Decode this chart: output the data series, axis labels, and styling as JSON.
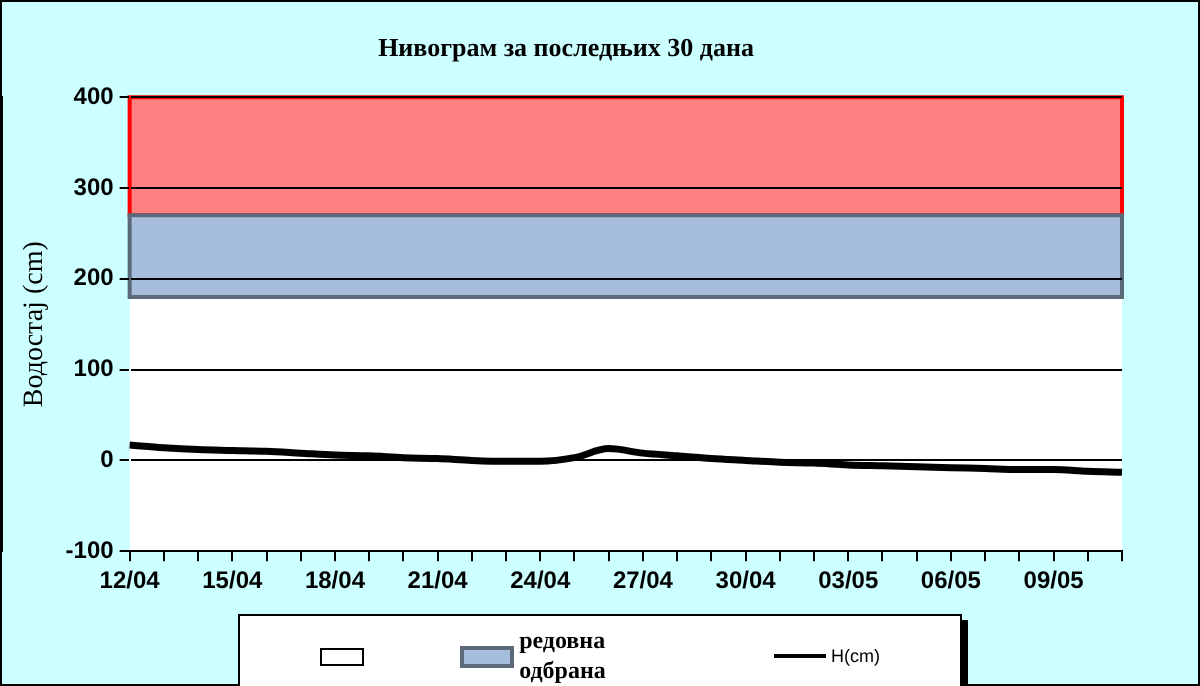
{
  "chart_data": {
    "type": "line",
    "title": "Нивограм за последњих 30 дана",
    "ylabel": "Водостај (cm)",
    "categories": [
      "12/04",
      null,
      null,
      "15/04",
      null,
      null,
      "18/04",
      null,
      null,
      "21/04",
      null,
      null,
      "24/04",
      null,
      null,
      "27/04",
      null,
      null,
      "30/04",
      null,
      null,
      "03/05",
      null,
      null,
      "06/05",
      null,
      null,
      "09/05",
      null,
      null
    ],
    "series": [
      {
        "name": "H(cm)",
        "color": "#000000",
        "values": [
          17,
          14,
          12,
          11,
          10,
          8,
          6,
          5,
          3,
          2,
          0,
          -1,
          -1,
          3,
          13,
          8,
          5,
          2,
          0,
          -2,
          -3,
          -5,
          -6,
          -7,
          -8,
          -9,
          -10,
          -10,
          -12,
          -13
        ]
      }
    ],
    "bands": [
      {
        "axis": "y",
        "from": 270,
        "to": 400,
        "color": "#ff8080"
      },
      {
        "axis": "y",
        "from": 180,
        "to": 270,
        "label": "редовна одбрана",
        "color": "#a6bedc"
      }
    ],
    "ylim": [
      -100,
      400
    ],
    "yticks": [
      -100,
      0,
      100,
      200,
      300,
      400
    ],
    "grid": "y",
    "legend": "bottom",
    "marker": "none",
    "line_style": "solid"
  }
}
